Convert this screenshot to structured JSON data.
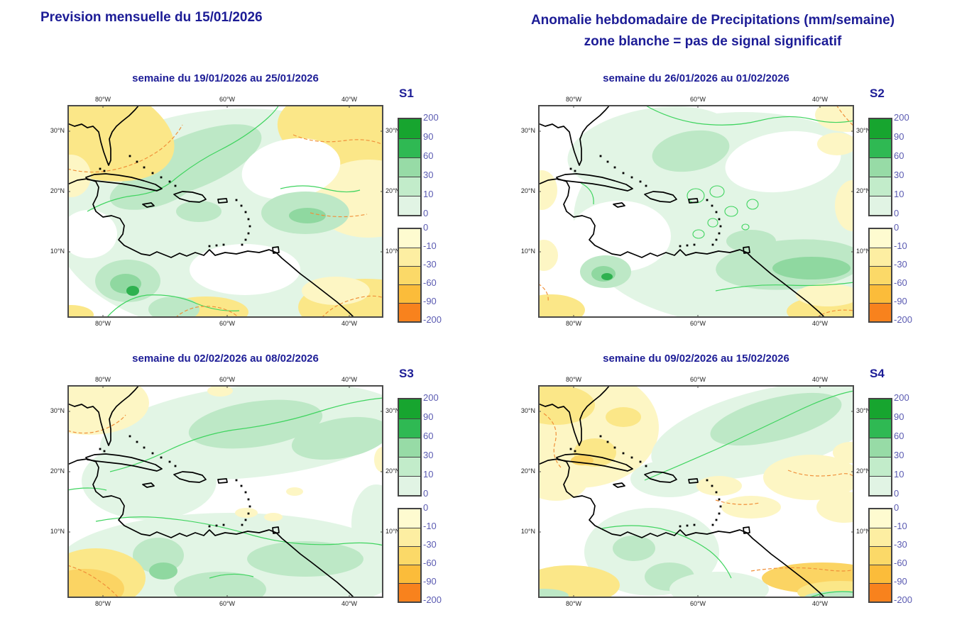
{
  "header": {
    "left_title": "Prevision mensuelle du 15/01/2026",
    "right_title_line1": "Anomalie hebdomadaire de Precipitations (mm/semaine)",
    "right_title_line2": "zone blanche = pas de signal significatif"
  },
  "axes": {
    "lon_labels": [
      "80°W",
      "60°W",
      "40°W"
    ],
    "lat_labels": [
      "30°N",
      "20°N",
      "10°N"
    ]
  },
  "legend": {
    "positive_labels": [
      "200",
      "90",
      "60",
      "30",
      "10",
      "0"
    ],
    "negative_labels": [
      "0",
      "-10",
      "-30",
      "-60",
      "-90",
      "-200"
    ],
    "units": "mm/semaine"
  },
  "colors": {
    "navy": "#1c1c96",
    "number": "#5b5bb2",
    "border": "#4a4a4a",
    "coast": "#000000",
    "contour_green": "#3fd45f",
    "contour_orange": "#f0903a",
    "g1": "#e2f5e5",
    "g2": "#bde8c6",
    "g3": "#8fd8a0",
    "g4": "#2eb14f",
    "y1": "#fdf6c4",
    "y2": "#fbe788",
    "y3": "#fbd463",
    "white": "#ffffff",
    "legend_green": [
      "#17a52f",
      "#2fb953",
      "#97dba6",
      "#c2ecca",
      "#e1f4e4"
    ],
    "legend_orange": [
      "#fefbd0",
      "#fdeea2",
      "#fbd968",
      "#fbbc3a",
      "#f8821d"
    ]
  },
  "map": {
    "coast": [
      "M0,26 L10,30 L20,27 L28,32 L36,30 L44,38 L47,52 L51,66 L56,80 L58,85 L61,78 L61,62 L59,48 L63,38 L69,30 L77,23 L87,15 L95,7 L101,0",
      "M26,102 L38,98 L54,97 L72,99 L90,102 L108,107 L124,112 L133,118 L126,121 L112,118 L94,114 L76,111 L58,109 L40,107 L28,105 Z",
      "M150,126 L162,122 L176,123 L190,127 L195,133 L186,137 L172,136 L158,132 Z",
      "M106,140 L118,138 L122,142 L112,144 Z",
      "M212,133 L224,132 L225,137 L213,138 Z",
      "M289,201 L297,200 L298,208 L290,209 Z",
      "M0,112 L14,106 L28,104 L40,108 L44,116 L42,128 L36,140 L40,150 L50,158 L62,156 L74,160 L80,170 L78,182 L72,190 L80,198 L92,204 L104,210 L116,212 L126,207 L136,211 L146,215 L158,209 L168,213 L180,208 L192,212 L200,204 L208,212 L222,208 L238,210 L254,206 L270,208 L284,204 L294,208 L302,216 L314,226 L328,238 L344,250 L362,264 L380,278 L396,292 L404,300"
    ],
    "dots": [
      [
        88,
        72
      ],
      [
        98,
        80
      ],
      [
        108,
        88
      ],
      [
        120,
        96
      ],
      [
        132,
        102
      ],
      [
        144,
        108
      ],
      [
        152,
        114
      ],
      [
        46,
        90
      ],
      [
        52,
        93
      ],
      [
        238,
        134
      ],
      [
        245,
        142
      ],
      [
        251,
        151
      ],
      [
        255,
        161
      ],
      [
        257,
        171
      ],
      [
        255,
        181
      ],
      [
        251,
        190
      ],
      [
        246,
        197
      ],
      [
        200,
        199
      ],
      [
        210,
        198
      ],
      [
        220,
        197
      ]
    ]
  },
  "panels": [
    {
      "id": "S1",
      "title": "semaine du 19/01/2026 au 25/01/2026",
      "regions": [
        [
          "e",
          250,
          165,
          270,
          160,
          "g1",
          0
        ],
        [
          "e",
          180,
          85,
          150,
          62,
          "g1",
          -20
        ],
        [
          "e",
          175,
          80,
          105,
          38,
          "g2",
          -22
        ],
        [
          "e",
          120,
          118,
          62,
          26,
          "g2",
          -15
        ],
        [
          "e",
          25,
          30,
          130,
          70,
          "y2",
          18
        ],
        [
          "e",
          5,
          100,
          28,
          30,
          "y1",
          0
        ],
        [
          "e",
          415,
          40,
          120,
          62,
          "y2",
          8
        ],
        [
          "e",
          424,
          132,
          80,
          55,
          "y1",
          0
        ],
        [
          "e",
          420,
          285,
          95,
          40,
          "y2",
          0
        ],
        [
          "e",
          378,
          262,
          48,
          20,
          "y1",
          0
        ],
        [
          "e",
          195,
          292,
          60,
          22,
          "y2",
          0
        ],
        [
          "e",
          5,
          296,
          32,
          14,
          "y2",
          0
        ],
        [
          "e",
          315,
          90,
          70,
          42,
          "white",
          -10
        ],
        [
          "e",
          250,
          232,
          78,
          36,
          "white",
          0
        ],
        [
          "e",
          30,
          182,
          40,
          34,
          "white",
          0
        ],
        [
          "e",
          335,
          152,
          62,
          30,
          "g2",
          0
        ],
        [
          "e",
          338,
          156,
          26,
          11,
          "g3",
          0
        ],
        [
          "e",
          185,
          150,
          32,
          15,
          "g2",
          0
        ],
        [
          "e",
          85,
          248,
          46,
          30,
          "g2",
          0
        ],
        [
          "e",
          82,
          252,
          22,
          14,
          "g3",
          0
        ],
        [
          "e",
          92,
          262,
          9,
          7,
          "g4",
          0
        ],
        [
          "e",
          150,
          288,
          36,
          18,
          "g2",
          0
        ]
      ],
      "contours": [
        [
          "M28,150 Q60,132 92,128 Q130,124 152,104 Q182,80 214,64 Q250,46 278,22 Q292,10 298,0",
          "g"
        ],
        [
          "M300,118 Q332,110 362,118 Q392,126 412,120",
          "g"
        ],
        [
          "M55,300 Q80,272 112,268 Q152,266 182,280 Q212,292 242,290",
          "g"
        ],
        [
          "M0,90 Q30,98 62,92 Q102,84 132,62 Q152,46 162,28",
          "o"
        ],
        [
          "M318,42 Q350,56 392,50 Q422,46 445,56",
          "o"
        ],
        [
          "M342,152 Q382,162 422,154",
          "o"
        ],
        [
          "M358,300 Q380,276 420,270 Q436,268 445,272",
          "o"
        ],
        [
          "M152,300 Q172,282 202,284 Q226,286 242,300",
          "o"
        ]
      ]
    },
    {
      "id": "S2",
      "title": "semaine du 26/01/2026 au 01/02/2026",
      "regions": [
        [
          "e",
          290,
          160,
          240,
          150,
          "g1",
          0
        ],
        [
          "e",
          160,
          60,
          120,
          55,
          "g1",
          -10
        ],
        [
          "e",
          215,
          65,
          55,
          28,
          "g2",
          -10
        ],
        [
          "e",
          115,
          185,
          72,
          50,
          "white",
          0
        ],
        [
          "e",
          345,
          80,
          82,
          42,
          "white",
          -8
        ],
        [
          "e",
          355,
          225,
          105,
          35,
          "g2",
          -4
        ],
        [
          "e",
          385,
          230,
          55,
          16,
          "g3",
          0
        ],
        [
          "e",
          300,
          192,
          35,
          16,
          "g2",
          0
        ],
        [
          "e",
          95,
          235,
          36,
          23,
          "g2",
          0
        ],
        [
          "e",
          92,
          238,
          17,
          11,
          "g3",
          0
        ],
        [
          "e",
          97,
          242,
          8,
          5,
          "g4",
          0
        ],
        [
          "e",
          435,
          14,
          45,
          24,
          "y1",
          0
        ],
        [
          "e",
          421,
          55,
          28,
          16,
          "y1",
          0
        ],
        [
          "e",
          443,
          142,
          25,
          36,
          "y1",
          0
        ],
        [
          "e",
          425,
          291,
          75,
          24,
          "y2",
          0
        ],
        [
          "e",
          408,
          268,
          45,
          16,
          "y1",
          0
        ],
        [
          "e",
          5,
          120,
          22,
          28,
          "y1",
          0
        ],
        [
          "e",
          8,
          212,
          20,
          22,
          "y1",
          0
        ],
        [
          "e",
          18,
          289,
          48,
          22,
          "y2",
          0
        ],
        [
          "r",
          222,
          128,
          12,
          10
        ],
        [
          "r",
          252,
          122,
          10,
          8
        ],
        [
          "r",
          272,
          150,
          9,
          7
        ],
        [
          "r",
          302,
          140,
          8,
          7
        ],
        [
          "r",
          246,
          166,
          7,
          6
        ],
        [
          "r",
          292,
          172,
          5,
          4
        ],
        [
          "r",
          226,
          182,
          8,
          6
        ]
      ],
      "contours": [
        [
          "M150,0 Q185,20 225,26 Q272,32 312,22 Q352,12 385,20 Q415,28 445,22",
          "g"
        ],
        [
          "M250,262 Q300,252 352,254 Q402,256 445,250",
          "g"
        ],
        [
          "M60,110 Q80,120 78,140",
          "g"
        ],
        [
          "M420,0 Q432,18 445,30",
          "o"
        ],
        [
          "M392,300 Q412,286 445,290",
          "o"
        ],
        [
          "M0,252 Q16,262 14,278",
          "o"
        ]
      ]
    },
    {
      "id": "S3",
      "title": "semaine du 02/02/2026 au 08/02/2026",
      "regions": [
        [
          "e",
          260,
          65,
          215,
          65,
          "g1",
          -6
        ],
        [
          "e",
          265,
          55,
          95,
          32,
          "g2",
          -8
        ],
        [
          "e",
          385,
          75,
          70,
          28,
          "g2",
          -10
        ],
        [
          "e",
          115,
          135,
          95,
          55,
          "g1",
          0
        ],
        [
          "e",
          230,
          255,
          245,
          75,
          "g1",
          0
        ],
        [
          "e",
          335,
          245,
          82,
          25,
          "g2",
          0
        ],
        [
          "e",
          215,
          288,
          65,
          25,
          "g2",
          0
        ],
        [
          "e",
          128,
          240,
          36,
          25,
          "g2",
          0
        ],
        [
          "e",
          135,
          262,
          20,
          12,
          "g3",
          0
        ],
        [
          "e",
          30,
          25,
          85,
          45,
          "y1",
          0
        ],
        [
          "e",
          215,
          8,
          18,
          8,
          "y1",
          0
        ],
        [
          "e",
          444,
          105,
          12,
          18,
          "y1",
          0
        ],
        [
          "e",
          252,
          180,
          16,
          7,
          "y1",
          0
        ],
        [
          "e",
          290,
          186,
          13,
          6,
          "y1",
          0
        ],
        [
          "e",
          320,
          150,
          12,
          6,
          "y1",
          0
        ],
        [
          "e",
          40,
          272,
          70,
          42,
          "y2",
          0
        ],
        [
          "e",
          25,
          287,
          55,
          28,
          "y3",
          0
        ],
        [
          "e",
          435,
          195,
          35,
          55,
          "g1",
          0
        ]
      ],
      "contours": [
        [
          "M60,122 Q102,112 142,92 Q192,68 242,62 Q302,54 352,38 Q402,22 445,18",
          "g"
        ],
        [
          "M0,148 Q30,142 55,148",
          "g"
        ],
        [
          "M40,192 Q92,182 142,188 Q202,194 262,212 Q322,228 382,224 Q422,220 445,226",
          "g"
        ],
        [
          "M200,272 Q232,262 262,270",
          "g"
        ],
        [
          "M0,64 Q26,72 52,62 Q72,54 82,42",
          "o"
        ],
        [
          "M0,254 Q26,262 46,277 Q62,288 72,300",
          "o"
        ]
      ]
    },
    {
      "id": "S4",
      "title": "semaine du 09/02/2026 au 15/02/2026",
      "regions": [
        [
          "e",
          55,
          60,
          115,
          85,
          "y1",
          0
        ],
        [
          "e",
          25,
          28,
          55,
          28,
          "y2",
          0
        ],
        [
          "e",
          80,
          95,
          30,
          20,
          "y2",
          0
        ],
        [
          "e",
          120,
          45,
          25,
          14,
          "y2",
          0
        ],
        [
          "e",
          25,
          135,
          45,
          28,
          "y1",
          0
        ],
        [
          "e",
          62,
          106,
          16,
          7,
          "y3",
          0
        ],
        [
          "e",
          320,
          65,
          165,
          58,
          "g1",
          -14
        ],
        [
          "e",
          335,
          48,
          95,
          30,
          "g2",
          -14
        ],
        [
          "e",
          185,
          132,
          55,
          26,
          "g1",
          0
        ],
        [
          "e",
          255,
          142,
          32,
          14,
          "y1",
          0
        ],
        [
          "e",
          300,
          172,
          42,
          16,
          "y1",
          0
        ],
        [
          "e",
          385,
          130,
          68,
          32,
          "y1",
          0
        ],
        [
          "e",
          432,
          172,
          40,
          22,
          "y1",
          0
        ],
        [
          "e",
          440,
          95,
          25,
          15,
          "y1",
          0
        ],
        [
          "e",
          160,
          235,
          95,
          62,
          "g1",
          0
        ],
        [
          "e",
          135,
          230,
          30,
          18,
          "g2",
          0
        ],
        [
          "e",
          185,
          270,
          35,
          20,
          "g2",
          0
        ],
        [
          "e",
          255,
          288,
          70,
          25,
          "g1",
          0
        ],
        [
          "e",
          400,
          272,
          85,
          22,
          "y3",
          0
        ],
        [
          "e",
          425,
          292,
          60,
          16,
          "y2",
          0
        ],
        [
          "e",
          430,
          299,
          55,
          9,
          "g2",
          0
        ],
        [
          "e",
          45,
          282,
          70,
          28,
          "y2",
          0
        ],
        [
          "e",
          8,
          297,
          35,
          10,
          "g2",
          0
        ]
      ],
      "contours": [
        [
          "M150,134 Q202,112 252,90 Q312,62 362,38 Q412,14 445,8",
          "g"
        ],
        [
          "M90,202 Q132,194 172,202 Q212,212 242,234 Q262,250 272,272",
          "g"
        ],
        [
          "M380,300 Q412,288 445,292",
          "g"
        ],
        [
          "M8,40 Q30,56 24,80 Q18,100 32,116",
          "o"
        ],
        [
          "M352,120 Q382,132 422,126 Q440,122 445,130",
          "o"
        ],
        [
          "M250,162 Q282,172 312,166",
          "o"
        ],
        [
          "M300,262 Q352,254 402,260 Q432,264 445,260",
          "o"
        ]
      ]
    }
  ]
}
